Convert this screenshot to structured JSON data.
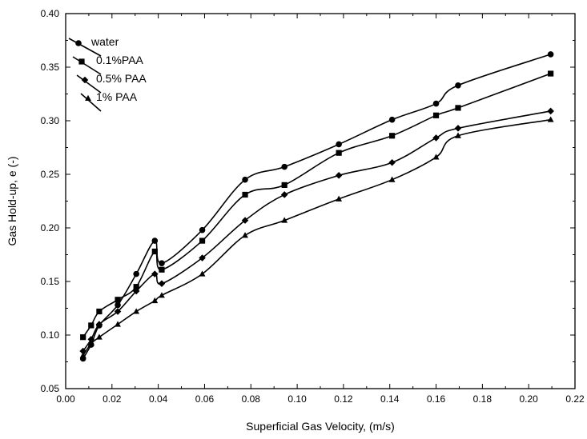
{
  "chart_data": {
    "type": "line",
    "title": "",
    "xlabel": "Superficial Gas Velocity, (m/s)",
    "ylabel": "Gas Hold-up, e (-)",
    "xlim": [
      0.0,
      0.22
    ],
    "ylim": [
      0.05,
      0.4
    ],
    "x_ticks": [
      "0.00",
      "0.02",
      "0.04",
      "0.06",
      "0.08",
      "0.10",
      "0.12",
      "0.14",
      "0.16",
      "0.18",
      "0.20",
      "0.22"
    ],
    "y_ticks": [
      "0.05",
      "0.10",
      "0.15",
      "0.20",
      "0.25",
      "0.30",
      "0.35",
      "0.40"
    ],
    "grid": false,
    "legend_position": "top-left",
    "series": [
      {
        "name": "water",
        "marker": "circle",
        "x": [
          0.0075,
          0.011,
          0.0145,
          0.0225,
          0.0305,
          0.0385,
          0.0415,
          0.059,
          0.0775,
          0.0945,
          0.118,
          0.141,
          0.16,
          0.1695,
          0.2095
        ],
        "y": [
          0.078,
          0.091,
          0.109,
          0.128,
          0.157,
          0.188,
          0.167,
          0.198,
          0.245,
          0.257,
          0.278,
          0.301,
          0.316,
          0.333,
          0.362
        ]
      },
      {
        "name": "0.1%PAA",
        "marker": "square",
        "x": [
          0.0075,
          0.011,
          0.0145,
          0.0225,
          0.0305,
          0.0385,
          0.0415,
          0.059,
          0.0775,
          0.0945,
          0.118,
          0.141,
          0.16,
          0.1695,
          0.2095
        ],
        "y": [
          0.098,
          0.109,
          0.122,
          0.133,
          0.145,
          0.178,
          0.161,
          0.188,
          0.231,
          0.24,
          0.27,
          0.286,
          0.305,
          0.312,
          0.344
        ]
      },
      {
        "name": "0.5% PAA",
        "marker": "diamond",
        "x": [
          0.0075,
          0.011,
          0.0145,
          0.0225,
          0.0305,
          0.0385,
          0.0415,
          0.059,
          0.0775,
          0.0945,
          0.118,
          0.141,
          0.16,
          0.1695,
          0.2095
        ],
        "y": [
          0.085,
          0.096,
          0.11,
          0.122,
          0.141,
          0.157,
          0.148,
          0.172,
          0.207,
          0.231,
          0.249,
          0.261,
          0.284,
          0.293,
          0.309
        ]
      },
      {
        "name": "1% PAA",
        "marker": "triangle",
        "x": [
          0.0075,
          0.011,
          0.0145,
          0.0225,
          0.0305,
          0.0385,
          0.0415,
          0.059,
          0.0775,
          0.0945,
          0.118,
          0.141,
          0.16,
          0.1695,
          0.2095
        ],
        "y": [
          0.081,
          0.092,
          0.098,
          0.11,
          0.122,
          0.132,
          0.137,
          0.157,
          0.193,
          0.207,
          0.227,
          0.245,
          0.266,
          0.286,
          0.301
        ]
      }
    ]
  }
}
